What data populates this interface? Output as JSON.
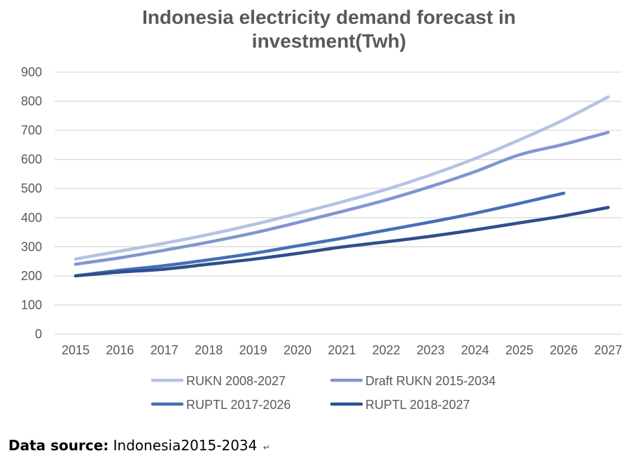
{
  "colors": {
    "series": [
      "#b4c2e3",
      "#7f97cf",
      "#4570b8",
      "#2f4e8c"
    ],
    "grid": "#d9d9d9",
    "axis_text": "#595959"
  },
  "footer": {
    "label": "Data source:",
    "text": "Indonesia2015-2034",
    "mark": "↵"
  },
  "chart_data": {
    "type": "line",
    "title": "Indonesia electricity demand forecast in investment(Twh)",
    "x": [
      "2015",
      "2016",
      "2017",
      "2018",
      "2019",
      "2020",
      "2021",
      "2022",
      "2023",
      "2024",
      "2025",
      "2026",
      "2027"
    ],
    "ylim": [
      0,
      900
    ],
    "yticks": [
      0,
      100,
      200,
      300,
      400,
      500,
      600,
      700,
      800,
      900
    ],
    "grid": true,
    "legend_position": "bottom",
    "series": [
      {
        "name": "RUKN 2008-2027",
        "values": [
          258,
          285,
          312,
          342,
          376,
          414,
          454,
          497,
          547,
          603,
          667,
          736,
          815
        ]
      },
      {
        "name": "Draft RUKN 2015-2034",
        "values": [
          240,
          262,
          288,
          316,
          347,
          383,
          421,
          461,
          507,
          558,
          616,
          652,
          693
        ]
      },
      {
        "name": "RUPTL 2017-2026",
        "values": [
          200,
          219,
          235,
          255,
          277,
          303,
          329,
          357,
          385,
          415,
          449,
          484,
          null
        ]
      },
      {
        "name": "RUPTL 2018-2027",
        "values": [
          200,
          213,
          223,
          240,
          257,
          277,
          299,
          317,
          336,
          358,
          382,
          406,
          435
        ]
      }
    ]
  }
}
